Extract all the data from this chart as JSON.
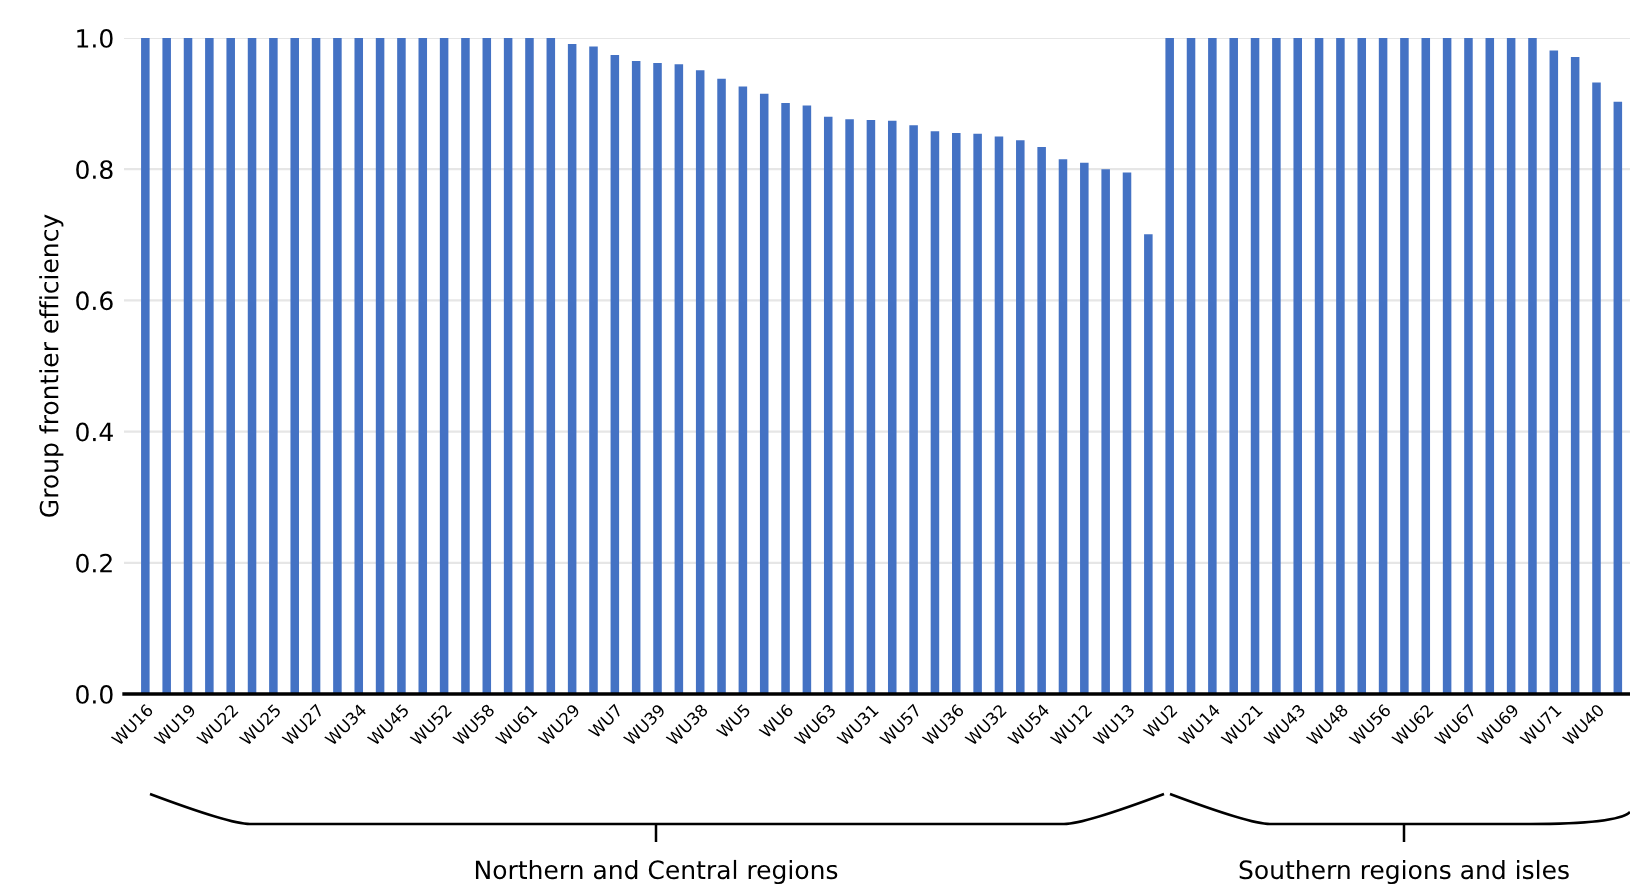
{
  "chart_data": {
    "type": "bar",
    "ylabel": "Group frontier efficiency",
    "categories": [
      "WU16",
      null,
      "WU19",
      null,
      "WU22",
      null,
      "WU25",
      null,
      "WU27",
      null,
      "WU34",
      null,
      "WU45",
      null,
      "WU52",
      null,
      "WU58",
      null,
      "WU61",
      null,
      "WU29",
      null,
      "WU7",
      null,
      "WU39",
      null,
      "WU38",
      null,
      "WU5",
      null,
      "WU6",
      null,
      "WU63",
      null,
      "WU31",
      null,
      "WU57",
      null,
      "WU36",
      null,
      "WU32",
      null,
      "WU54",
      null,
      "WU12",
      null,
      "WU13",
      null,
      "WU2",
      null,
      "WU14",
      null,
      "WU21",
      null,
      "WU43",
      null,
      "WU48",
      null,
      "WU56",
      null,
      "WU62",
      null,
      "WU67",
      null,
      "WU69",
      null,
      "WU71",
      null,
      "WU40",
      null
    ],
    "values": [
      1.0,
      1.0,
      1.0,
      1.0,
      1.0,
      1.0,
      1.0,
      1.0,
      1.0,
      1.0,
      1.0,
      1.0,
      1.0,
      1.0,
      1.0,
      1.0,
      1.0,
      1.0,
      1.0,
      1.0,
      0.991,
      0.987,
      0.974,
      0.965,
      0.962,
      0.96,
      0.951,
      0.938,
      0.926,
      0.915,
      0.901,
      0.897,
      0.88,
      0.876,
      0.875,
      0.874,
      0.867,
      0.858,
      0.855,
      0.854,
      0.85,
      0.844,
      0.834,
      0.815,
      0.81,
      0.8,
      0.795,
      0.701,
      1.0,
      1.0,
      1.0,
      1.0,
      1.0,
      1.0,
      1.0,
      1.0,
      1.0,
      1.0,
      1.0,
      1.0,
      1.0,
      1.0,
      1.0,
      1.0,
      1.0,
      1.0,
      0.981,
      0.971,
      0.932,
      0.903
    ],
    "color": "#4472c4",
    "ylim": [
      0,
      1.0
    ],
    "yticks": [
      {
        "value": 0,
        "label": "0.0"
      },
      {
        "value": 0.2,
        "label": "0.2"
      },
      {
        "value": 0.4,
        "label": "0.4"
      },
      {
        "value": 0.6,
        "label": "0.6"
      },
      {
        "value": 0.8,
        "label": "0.8"
      },
      {
        "value": 1.0,
        "label": "1.0"
      }
    ],
    "grid": "y",
    "annotations": [
      "Northern and Central regions",
      "Southern regions and isles"
    ]
  }
}
